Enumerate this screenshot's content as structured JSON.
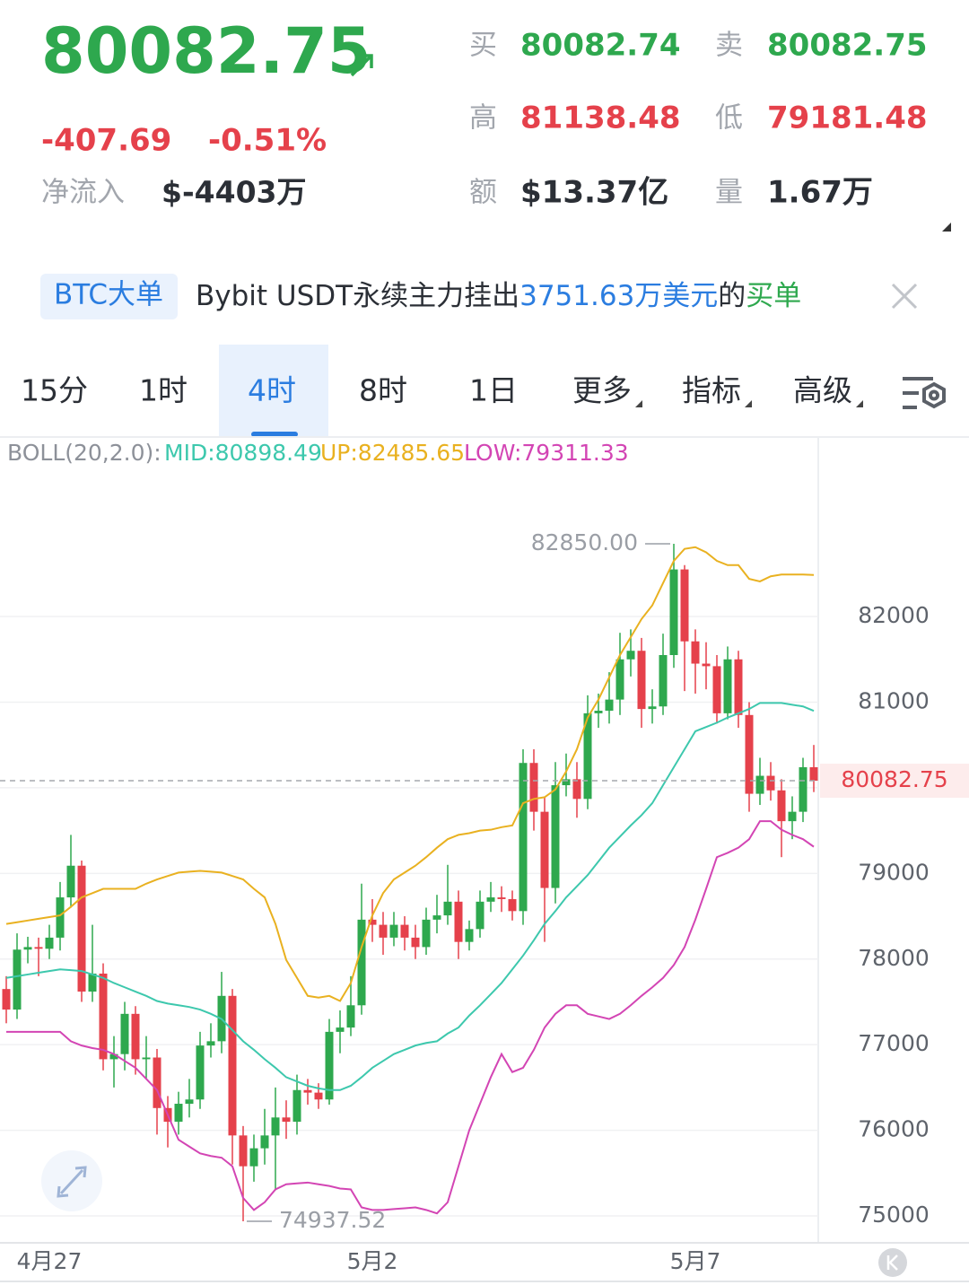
{
  "header": {
    "price": "80082.75",
    "change": "-407.69",
    "change_pct": "-0.51%",
    "inflow_label": "净流入",
    "inflow_value": "$-4403万",
    "stats": [
      {
        "label": "买",
        "value": "80082.74",
        "color": "green"
      },
      {
        "label": "卖",
        "value": "80082.75",
        "color": "green"
      },
      {
        "label": "高",
        "value": "81138.48",
        "color": "red"
      },
      {
        "label": "低",
        "value": "79181.48",
        "color": "red"
      },
      {
        "label": "额",
        "value": "$13.37亿",
        "color": "dark"
      },
      {
        "label": "量",
        "value": "1.67万",
        "color": "dark"
      }
    ]
  },
  "banner": {
    "tag": "BTC大单",
    "text": "Bybit USDT永续主力挂出",
    "highlight": "3751.63万美元",
    "mid": "的",
    "action": "买单"
  },
  "tabs": [
    {
      "label": "15分"
    },
    {
      "label": "1时"
    },
    {
      "label": "4时",
      "active": true
    },
    {
      "label": "8时"
    },
    {
      "label": "1日"
    },
    {
      "label": "更多",
      "menu": true
    },
    {
      "label": "指标",
      "menu": true
    },
    {
      "label": "高级",
      "menu": true
    }
  ],
  "chart_data": {
    "type": "candlestick",
    "indicator_label": "BOLL(20,2.0):",
    "up_color": "#2ea84e",
    "down_color": "#e5414b",
    "max_label": "82850.00",
    "min_label": "74937.52",
    "ylim": [
      74686,
      84065
    ],
    "yticks": [
      75000,
      76000,
      77000,
      78000,
      79000,
      80000,
      81000,
      82000
    ],
    "grid": true,
    "categories": [
      null,
      null,
      null,
      null,
      "4月27",
      null,
      null,
      null,
      null,
      null,
      null,
      null,
      null,
      null,
      null,
      null,
      null,
      null,
      null,
      null,
      null,
      null,
      null,
      null,
      null,
      null,
      null,
      null,
      null,
      null,
      null,
      null,
      null,
      null,
      "5月2",
      null,
      null,
      null,
      null,
      null,
      null,
      null,
      null,
      null,
      null,
      null,
      null,
      null,
      null,
      null,
      null,
      null,
      null,
      null,
      null,
      null,
      null,
      null,
      null,
      null,
      null,
      null,
      null,
      null,
      "5月7",
      null,
      null,
      null,
      null,
      null,
      null,
      null,
      null,
      null,
      null,
      null
    ],
    "ohlc": [
      [
        77650,
        77800,
        77250,
        77410
      ],
      [
        77410,
        78300,
        77300,
        78110
      ],
      [
        78110,
        78260,
        77950,
        78140
      ],
      [
        78140,
        78250,
        77800,
        78120
      ],
      [
        78120,
        78400,
        78000,
        78250
      ],
      [
        78250,
        78900,
        78100,
        78720
      ],
      [
        78720,
        79450,
        78600,
        79090
      ],
      [
        79090,
        79150,
        77500,
        77620
      ],
      [
        77620,
        78400,
        77500,
        77830
      ],
      [
        77830,
        77950,
        76700,
        76830
      ],
      [
        76830,
        77100,
        76500,
        76890
      ],
      [
        76890,
        77500,
        76700,
        77360
      ],
      [
        77360,
        77450,
        76650,
        76830
      ],
      [
        76830,
        77100,
        76600,
        76850
      ],
      [
        76850,
        76950,
        75950,
        76260
      ],
      [
        76260,
        76400,
        75800,
        76100
      ],
      [
        76100,
        76450,
        75950,
        76310
      ],
      [
        76310,
        76600,
        76150,
        76360
      ],
      [
        76360,
        77150,
        76250,
        76990
      ],
      [
        76990,
        77250,
        76850,
        77040
      ],
      [
        77040,
        77850,
        76900,
        77570
      ],
      [
        77570,
        77650,
        75600,
        75940
      ],
      [
        75940,
        76050,
        74937.52,
        75580
      ],
      [
        75580,
        75950,
        75400,
        75790
      ],
      [
        75790,
        76250,
        75600,
        75940
      ],
      [
        75940,
        76500,
        75300,
        76150
      ],
      [
        76150,
        76350,
        75900,
        76100
      ],
      [
        76100,
        76650,
        75950,
        76470
      ],
      [
        76470,
        76600,
        76300,
        76440
      ],
      [
        76440,
        76550,
        76250,
        76360
      ],
      [
        76360,
        77300,
        76300,
        77150
      ],
      [
        77150,
        77400,
        76900,
        77200
      ],
      [
        77200,
        77800,
        77100,
        77460
      ],
      [
        77460,
        78880,
        77350,
        78460
      ],
      [
        78460,
        78700,
        78200,
        78400
      ],
      [
        78400,
        78550,
        78050,
        78250
      ],
      [
        78250,
        78550,
        78150,
        78400
      ],
      [
        78400,
        78500,
        78100,
        78250
      ],
      [
        78250,
        78400,
        78000,
        78140
      ],
      [
        78140,
        78600,
        78050,
        78460
      ],
      [
        78460,
        78750,
        78300,
        78510
      ],
      [
        78510,
        79100,
        78400,
        78670
      ],
      [
        78670,
        78800,
        78000,
        78200
      ],
      [
        78200,
        78450,
        78100,
        78350
      ],
      [
        78350,
        78800,
        78250,
        78670
      ],
      [
        78670,
        78900,
        78550,
        78720
      ],
      [
        78720,
        78850,
        78550,
        78700
      ],
      [
        78700,
        78800,
        78450,
        78560
      ],
      [
        78560,
        80450,
        78400,
        80290
      ],
      [
        80290,
        80450,
        79500,
        79720
      ],
      [
        79720,
        79900,
        78200,
        78830
      ],
      [
        78830,
        80300,
        78650,
        80030
      ],
      [
        80030,
        80400,
        79900,
        80100
      ],
      [
        80100,
        80300,
        79650,
        79870
      ],
      [
        79870,
        81080,
        79750,
        80870
      ],
      [
        80870,
        81100,
        80700,
        80900
      ],
      [
        80900,
        81350,
        80750,
        81030
      ],
      [
        81030,
        81810,
        80850,
        81500
      ],
      [
        81500,
        81850,
        81300,
        81600
      ],
      [
        81600,
        81750,
        80700,
        80920
      ],
      [
        80920,
        81150,
        80750,
        80950
      ],
      [
        80950,
        81800,
        80850,
        81550
      ],
      [
        81550,
        82850,
        81400,
        82550
      ],
      [
        82550,
        82600,
        81130,
        81710
      ],
      [
        81710,
        81850,
        81100,
        81450
      ],
      [
        81450,
        81700,
        81150,
        81420
      ],
      [
        81420,
        81550,
        80750,
        80870
      ],
      [
        80870,
        81650,
        80800,
        81500
      ],
      [
        81500,
        81600,
        80700,
        80850
      ],
      [
        80850,
        81000,
        79720,
        79930
      ],
      [
        79930,
        80350,
        79800,
        80140
      ],
      [
        80140,
        80300,
        79850,
        79970
      ],
      [
        79970,
        80100,
        79190,
        79610
      ],
      [
        79610,
        79900,
        79400,
        79720
      ],
      [
        79720,
        80350,
        79600,
        80240
      ],
      [
        80240,
        80500,
        79950,
        80082.75
      ]
    ],
    "series": [
      {
        "legend_label": "MID:80898.49",
        "color": "#3dc8ad",
        "values": [
          77780,
          77800,
          77820,
          77840,
          77860,
          77880,
          77870,
          77860,
          77820,
          77780,
          77720,
          77670,
          77620,
          77570,
          77510,
          77480,
          77460,
          77440,
          77410,
          77360,
          77300,
          77170,
          77040,
          76940,
          76830,
          76730,
          76620,
          76570,
          76520,
          76490,
          76470,
          76470,
          76520,
          76620,
          76730,
          76810,
          76890,
          76940,
          76990,
          77020,
          77040,
          77130,
          77200,
          77340,
          77460,
          77590,
          77720,
          77880,
          78040,
          78220,
          78410,
          78560,
          78720,
          78850,
          78980,
          79140,
          79300,
          79430,
          79560,
          79680,
          79820,
          80030,
          80240,
          80450,
          80660,
          80710,
          80760,
          80820,
          80870,
          80920,
          80990,
          80990,
          80990,
          80970,
          80950,
          80898.49
        ]
      },
      {
        "legend_label": "UP:82485.65",
        "color": "#e9b120",
        "values": [
          78410,
          78430,
          78450,
          78470,
          78490,
          78510,
          78610,
          78720,
          78770,
          78820,
          78820,
          78820,
          78820,
          78880,
          78930,
          78970,
          79010,
          79020,
          79030,
          79020,
          79010,
          78970,
          78930,
          78820,
          78720,
          78410,
          77990,
          77780,
          77570,
          77550,
          77570,
          77510,
          77720,
          78140,
          78510,
          78770,
          78930,
          79010,
          79090,
          79190,
          79300,
          79400,
          79450,
          79470,
          79500,
          79510,
          79540,
          79560,
          79820,
          79870,
          79890,
          79980,
          80190,
          80450,
          80820,
          81030,
          81290,
          81550,
          81760,
          81970,
          82130,
          82390,
          82650,
          82790,
          82810,
          82750,
          82650,
          82600,
          82600,
          82440,
          82410,
          82470,
          82490,
          82490,
          82490,
          82485.65
        ]
      },
      {
        "legend_label": "LOW:79311.33",
        "color": "#d345b4",
        "values": [
          77150,
          77150,
          77150,
          77150,
          77150,
          77150,
          77040,
          76990,
          76960,
          76940,
          76890,
          76810,
          76730,
          76600,
          76470,
          76180,
          75890,
          75810,
          75730,
          75700,
          75680,
          75580,
          75210,
          75070,
          75160,
          75310,
          75370,
          75380,
          75390,
          75370,
          75350,
          75320,
          75310,
          75100,
          75070,
          75070,
          75080,
          75090,
          75100,
          75070,
          75030,
          75160,
          75580,
          76000,
          76310,
          76620,
          76890,
          76680,
          76730,
          76940,
          77200,
          77360,
          77460,
          77460,
          77360,
          77330,
          77300,
          77360,
          77460,
          77570,
          77670,
          77780,
          77930,
          78140,
          78460,
          78820,
          79190,
          79240,
          79300,
          79400,
          79610,
          79610,
          79510,
          79450,
          79400,
          79311.33
        ]
      }
    ]
  }
}
